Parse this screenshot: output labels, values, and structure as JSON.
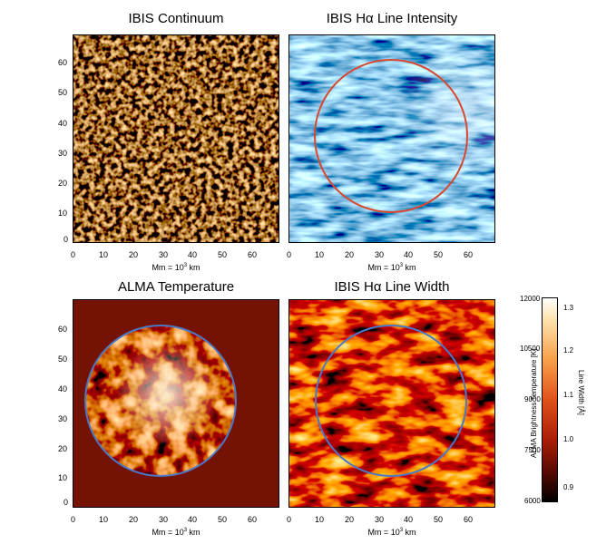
{
  "panels": {
    "top_left": {
      "title": "IBIS Continuum",
      "xlabel_base": "Mm = 10",
      "xlabel_exp": "3",
      "xlabel_unit": " km"
    },
    "top_right": {
      "title": "IBIS Hα Line Intensity",
      "xlabel_base": "Mm = 10",
      "xlabel_exp": "3",
      "xlabel_unit": " km"
    },
    "bottom_left": {
      "title": "ALMA Temperature",
      "xlabel_base": "Mm = 10",
      "xlabel_exp": "3",
      "xlabel_unit": " km"
    },
    "bottom_right": {
      "title": "IBIS Hα Line Width",
      "xlabel_base": "Mm = 10",
      "xlabel_exp": "3",
      "xlabel_unit": " km"
    }
  },
  "axes": {
    "x_ticks": [
      "0",
      "10",
      "20",
      "30",
      "40",
      "50",
      "60"
    ],
    "y_ticks": [
      "0",
      "10",
      "20",
      "30",
      "40",
      "50",
      "60"
    ]
  },
  "colorbar": {
    "left_ticks": [
      "12000",
      "10500",
      "9000",
      "7500",
      "6000"
    ],
    "right_ticks": [
      "1.3",
      "1.2",
      "1.1",
      "1.0",
      "0.9"
    ],
    "left_label": "ALMA Brightness Temperature [K]",
    "right_label": "Line Width [Å]"
  },
  "colors": {
    "circle_red": "#d9482e",
    "circle_blue": "#4a78c8"
  }
}
